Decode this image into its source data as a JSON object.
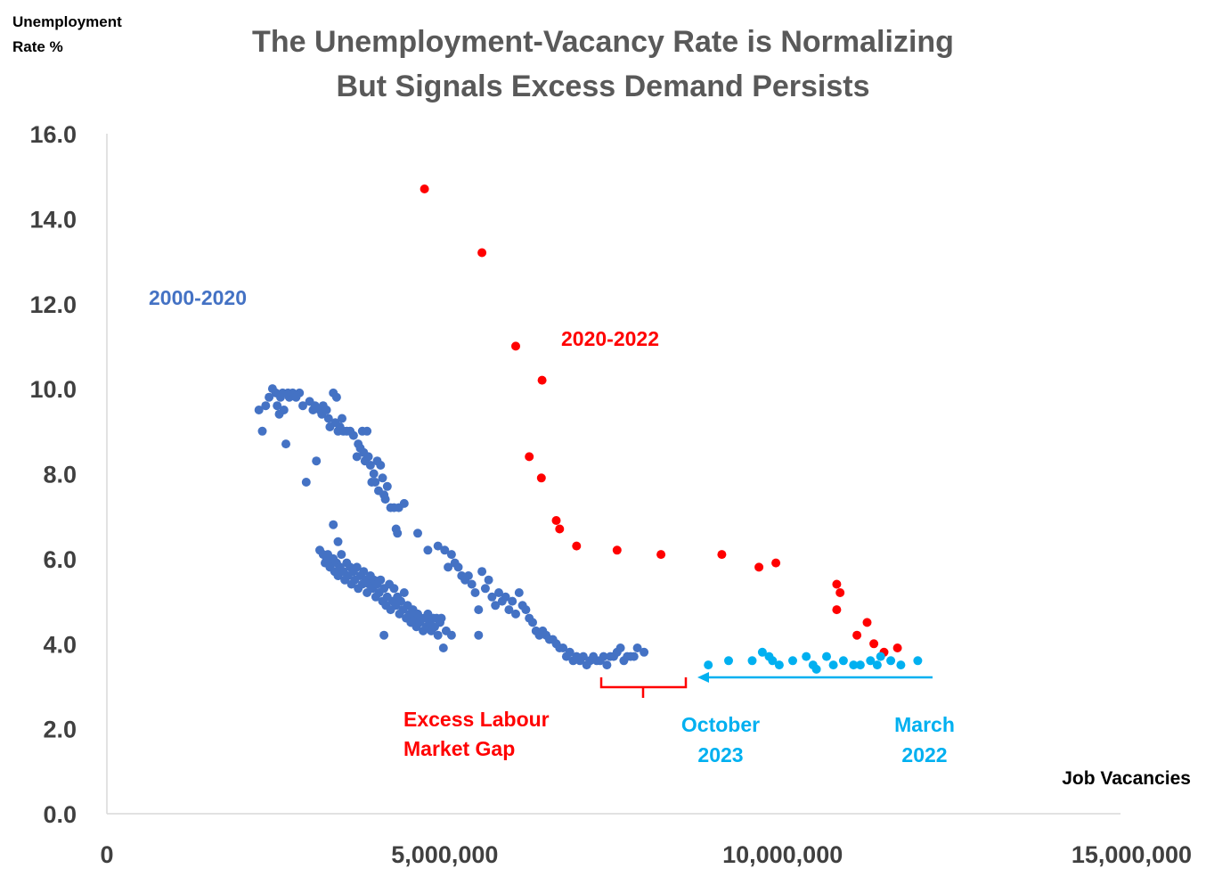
{
  "chart_data": {
    "type": "scatter",
    "title_lines": [
      "The Unemployment-Vacancy Rate is Normalizing",
      "But Signals Excess Demand Persists"
    ],
    "ylabel_lines": [
      "Unemployment",
      "Rate %"
    ],
    "xlabel": "Job Vacancies",
    "xlim": [
      0,
      15000000
    ],
    "ylim": [
      0,
      16
    ],
    "x_ticks": [
      0,
      5000000,
      10000000,
      15000000
    ],
    "x_tick_labels": [
      "0",
      "5,000,000",
      "10,000,000",
      "15,000,000"
    ],
    "y_ticks": [
      0,
      2,
      4,
      6,
      8,
      10,
      12,
      14,
      16
    ],
    "y_tick_labels": [
      "0.0",
      "2.0",
      "4.0",
      "6.0",
      "8.0",
      "10.0",
      "12.0",
      "14.0",
      "16.0"
    ],
    "grid": false,
    "legend": "none",
    "series": [
      {
        "name": "2000-2020",
        "color": "#4472C4",
        "points": [
          [
            2250000,
            9.5
          ],
          [
            2300000,
            9.0
          ],
          [
            2350000,
            9.6
          ],
          [
            2400000,
            9.8
          ],
          [
            2450000,
            10.0
          ],
          [
            2500000,
            9.9
          ],
          [
            2520000,
            9.6
          ],
          [
            2550000,
            9.4
          ],
          [
            2570000,
            9.8
          ],
          [
            2600000,
            9.9
          ],
          [
            2620000,
            9.5
          ],
          [
            2650000,
            8.7
          ],
          [
            2680000,
            9.9
          ],
          [
            2700000,
            9.8
          ],
          [
            2750000,
            9.9
          ],
          [
            2800000,
            9.8
          ],
          [
            2850000,
            9.9
          ],
          [
            2900000,
            9.6
          ],
          [
            2950000,
            7.8
          ],
          [
            3000000,
            9.7
          ],
          [
            3050000,
            9.5
          ],
          [
            3080000,
            9.6
          ],
          [
            3100000,
            8.3
          ],
          [
            3150000,
            9.5
          ],
          [
            3180000,
            9.4
          ],
          [
            3200000,
            9.6
          ],
          [
            3250000,
            9.5
          ],
          [
            3280000,
            9.3
          ],
          [
            3300000,
            9.1
          ],
          [
            3350000,
            9.9
          ],
          [
            3380000,
            9.2
          ],
          [
            3400000,
            9.8
          ],
          [
            3420000,
            9.0
          ],
          [
            3450000,
            9.1
          ],
          [
            3480000,
            9.3
          ],
          [
            3500000,
            9.0
          ],
          [
            3550000,
            9.0
          ],
          [
            3600000,
            9.0
          ],
          [
            3650000,
            8.9
          ],
          [
            3700000,
            8.4
          ],
          [
            3720000,
            8.7
          ],
          [
            3750000,
            8.6
          ],
          [
            3780000,
            9.0
          ],
          [
            3800000,
            8.5
          ],
          [
            3820000,
            8.3
          ],
          [
            3850000,
            9.0
          ],
          [
            3870000,
            8.4
          ],
          [
            3900000,
            8.2
          ],
          [
            3920000,
            7.8
          ],
          [
            3950000,
            8.0
          ],
          [
            3970000,
            7.8
          ],
          [
            4000000,
            8.3
          ],
          [
            4020000,
            7.6
          ],
          [
            4050000,
            8.2
          ],
          [
            4080000,
            7.9
          ],
          [
            4100000,
            7.5
          ],
          [
            4120000,
            7.4
          ],
          [
            4150000,
            7.7
          ],
          [
            4200000,
            7.2
          ],
          [
            4250000,
            7.2
          ],
          [
            4280000,
            6.7
          ],
          [
            4300000,
            6.6
          ],
          [
            4320000,
            7.2
          ],
          [
            4400000,
            7.3
          ],
          [
            4600000,
            6.6
          ],
          [
            3150000,
            6.2
          ],
          [
            3200000,
            6.1
          ],
          [
            3230000,
            5.9
          ],
          [
            3250000,
            6.0
          ],
          [
            3270000,
            6.1
          ],
          [
            3300000,
            5.8
          ],
          [
            3320000,
            5.9
          ],
          [
            3350000,
            6.0
          ],
          [
            3370000,
            5.7
          ],
          [
            3400000,
            5.9
          ],
          [
            3420000,
            5.6
          ],
          [
            3450000,
            5.8
          ],
          [
            3470000,
            6.1
          ],
          [
            3500000,
            5.7
          ],
          [
            3520000,
            5.5
          ],
          [
            3550000,
            5.9
          ],
          [
            3570000,
            5.6
          ],
          [
            3600000,
            5.8
          ],
          [
            3620000,
            5.4
          ],
          [
            3650000,
            5.7
          ],
          [
            3670000,
            5.5
          ],
          [
            3700000,
            5.8
          ],
          [
            3720000,
            5.3
          ],
          [
            3750000,
            5.6
          ],
          [
            3780000,
            5.4
          ],
          [
            3800000,
            5.7
          ],
          [
            3830000,
            5.5
          ],
          [
            3850000,
            5.2
          ],
          [
            3880000,
            5.4
          ],
          [
            3900000,
            5.6
          ],
          [
            3930000,
            5.3
          ],
          [
            3950000,
            5.5
          ],
          [
            3980000,
            5.1
          ],
          [
            4000000,
            5.4
          ],
          [
            4030000,
            5.2
          ],
          [
            4050000,
            5.5
          ],
          [
            4080000,
            5.0
          ],
          [
            4100000,
            5.3
          ],
          [
            4130000,
            4.9
          ],
          [
            4150000,
            5.1
          ],
          [
            4180000,
            5.4
          ],
          [
            4200000,
            4.8
          ],
          [
            4230000,
            5.0
          ],
          [
            4250000,
            5.3
          ],
          [
            4280000,
            4.9
          ],
          [
            4300000,
            5.1
          ],
          [
            4330000,
            4.7
          ],
          [
            4350000,
            5.0
          ],
          [
            4380000,
            4.8
          ],
          [
            4400000,
            5.2
          ],
          [
            4430000,
            4.6
          ],
          [
            4450000,
            4.9
          ],
          [
            4480000,
            4.7
          ],
          [
            4500000,
            4.5
          ],
          [
            4530000,
            4.8
          ],
          [
            4550000,
            4.6
          ],
          [
            4580000,
            4.4
          ],
          [
            4600000,
            4.7
          ],
          [
            4630000,
            4.5
          ],
          [
            4650000,
            4.6
          ],
          [
            4680000,
            4.3
          ],
          [
            4700000,
            4.6
          ],
          [
            4730000,
            4.4
          ],
          [
            4750000,
            4.7
          ],
          [
            4780000,
            4.5
          ],
          [
            4800000,
            4.3
          ],
          [
            4830000,
            4.6
          ],
          [
            4850000,
            4.4
          ],
          [
            4880000,
            4.6
          ],
          [
            4900000,
            4.2
          ],
          [
            4930000,
            4.5
          ],
          [
            4950000,
            4.6
          ],
          [
            4980000,
            3.9
          ],
          [
            5020000,
            4.3
          ],
          [
            5100000,
            4.2
          ],
          [
            3350000,
            6.8
          ],
          [
            3420000,
            6.4
          ],
          [
            4100000,
            4.2
          ],
          [
            4500000,
            4.5
          ],
          [
            4750000,
            6.2
          ],
          [
            4900000,
            6.3
          ],
          [
            5000000,
            6.2
          ],
          [
            5050000,
            5.8
          ],
          [
            5100000,
            6.1
          ],
          [
            5150000,
            5.9
          ],
          [
            5200000,
            5.8
          ],
          [
            5250000,
            5.6
          ],
          [
            5300000,
            5.5
          ],
          [
            5350000,
            5.6
          ],
          [
            5400000,
            5.4
          ],
          [
            5450000,
            5.2
          ],
          [
            5500000,
            4.8
          ],
          [
            5550000,
            5.7
          ],
          [
            5600000,
            5.3
          ],
          [
            5650000,
            5.5
          ],
          [
            5700000,
            5.1
          ],
          [
            5750000,
            4.9
          ],
          [
            5800000,
            5.2
          ],
          [
            5850000,
            5.0
          ],
          [
            5900000,
            5.1
          ],
          [
            5950000,
            4.8
          ],
          [
            6000000,
            5.0
          ],
          [
            6050000,
            4.7
          ],
          [
            6100000,
            5.2
          ],
          [
            6150000,
            4.9
          ],
          [
            6200000,
            4.8
          ],
          [
            6250000,
            4.6
          ],
          [
            6300000,
            4.5
          ],
          [
            6350000,
            4.3
          ],
          [
            6400000,
            4.2
          ],
          [
            6450000,
            4.3
          ],
          [
            6500000,
            4.2
          ],
          [
            6550000,
            4.1
          ],
          [
            6600000,
            4.1
          ],
          [
            6650000,
            4.0
          ],
          [
            6700000,
            3.9
          ],
          [
            6750000,
            3.9
          ],
          [
            6800000,
            3.7
          ],
          [
            6850000,
            3.8
          ],
          [
            6900000,
            3.6
          ],
          [
            6950000,
            3.7
          ],
          [
            7000000,
            3.6
          ],
          [
            7050000,
            3.7
          ],
          [
            7100000,
            3.5
          ],
          [
            7150000,
            3.6
          ],
          [
            7200000,
            3.7
          ],
          [
            7250000,
            3.6
          ],
          [
            7300000,
            3.6
          ],
          [
            7350000,
            3.7
          ],
          [
            7400000,
            3.5
          ],
          [
            7450000,
            3.7
          ],
          [
            7500000,
            3.7
          ],
          [
            7550000,
            3.8
          ],
          [
            7600000,
            3.9
          ],
          [
            7650000,
            3.6
          ],
          [
            7700000,
            3.7
          ],
          [
            7750000,
            3.7
          ],
          [
            7800000,
            3.7
          ],
          [
            7850000,
            3.9
          ],
          [
            7950000,
            3.8
          ],
          [
            5500000,
            4.2
          ]
        ]
      },
      {
        "name": "2020-2022",
        "color": "#FF0000",
        "points": [
          [
            4700000,
            14.7
          ],
          [
            5550000,
            13.2
          ],
          [
            6050000,
            11.0
          ],
          [
            6440000,
            10.2
          ],
          [
            6250000,
            8.4
          ],
          [
            6430000,
            7.9
          ],
          [
            6650000,
            6.9
          ],
          [
            6700000,
            6.7
          ],
          [
            6950000,
            6.3
          ],
          [
            7550000,
            6.2
          ],
          [
            8200000,
            6.1
          ],
          [
            9100000,
            6.1
          ],
          [
            9650000,
            5.8
          ],
          [
            9900000,
            5.9
          ],
          [
            10800000,
            5.4
          ],
          [
            10850000,
            5.2
          ],
          [
            10800000,
            4.8
          ],
          [
            11100000,
            4.2
          ],
          [
            11250000,
            4.5
          ],
          [
            11350000,
            4.0
          ],
          [
            11500000,
            3.8
          ],
          [
            11700000,
            3.9
          ]
        ]
      },
      {
        "name": "",
        "color": "#00B0F0",
        "points": [
          [
            8900000,
            3.5
          ],
          [
            9200000,
            3.6
          ],
          [
            9550000,
            3.6
          ],
          [
            9700000,
            3.8
          ],
          [
            9800000,
            3.7
          ],
          [
            9850000,
            3.6
          ],
          [
            9950000,
            3.5
          ],
          [
            10150000,
            3.6
          ],
          [
            10350000,
            3.7
          ],
          [
            10450000,
            3.5
          ],
          [
            10500000,
            3.4
          ],
          [
            10650000,
            3.7
          ],
          [
            10750000,
            3.5
          ],
          [
            10900000,
            3.6
          ],
          [
            11050000,
            3.5
          ],
          [
            11150000,
            3.5
          ],
          [
            11300000,
            3.6
          ],
          [
            11400000,
            3.5
          ],
          [
            11450000,
            3.7
          ],
          [
            11600000,
            3.6
          ],
          [
            11750000,
            3.5
          ],
          [
            12000000,
            3.6
          ]
        ]
      }
    ],
    "annotations": [
      {
        "text": "2000-2020",
        "color": "#4472C4"
      },
      {
        "text": "2020-2022",
        "color": "#FF0000"
      },
      {
        "lines": [
          "Excess Labour",
          "Market Gap"
        ],
        "color": "#FF0000"
      },
      {
        "lines": [
          "October",
          "2023"
        ],
        "color": "#00B0F0"
      },
      {
        "lines": [
          "March",
          "2022"
        ],
        "color": "#00B0F0"
      }
    ]
  }
}
